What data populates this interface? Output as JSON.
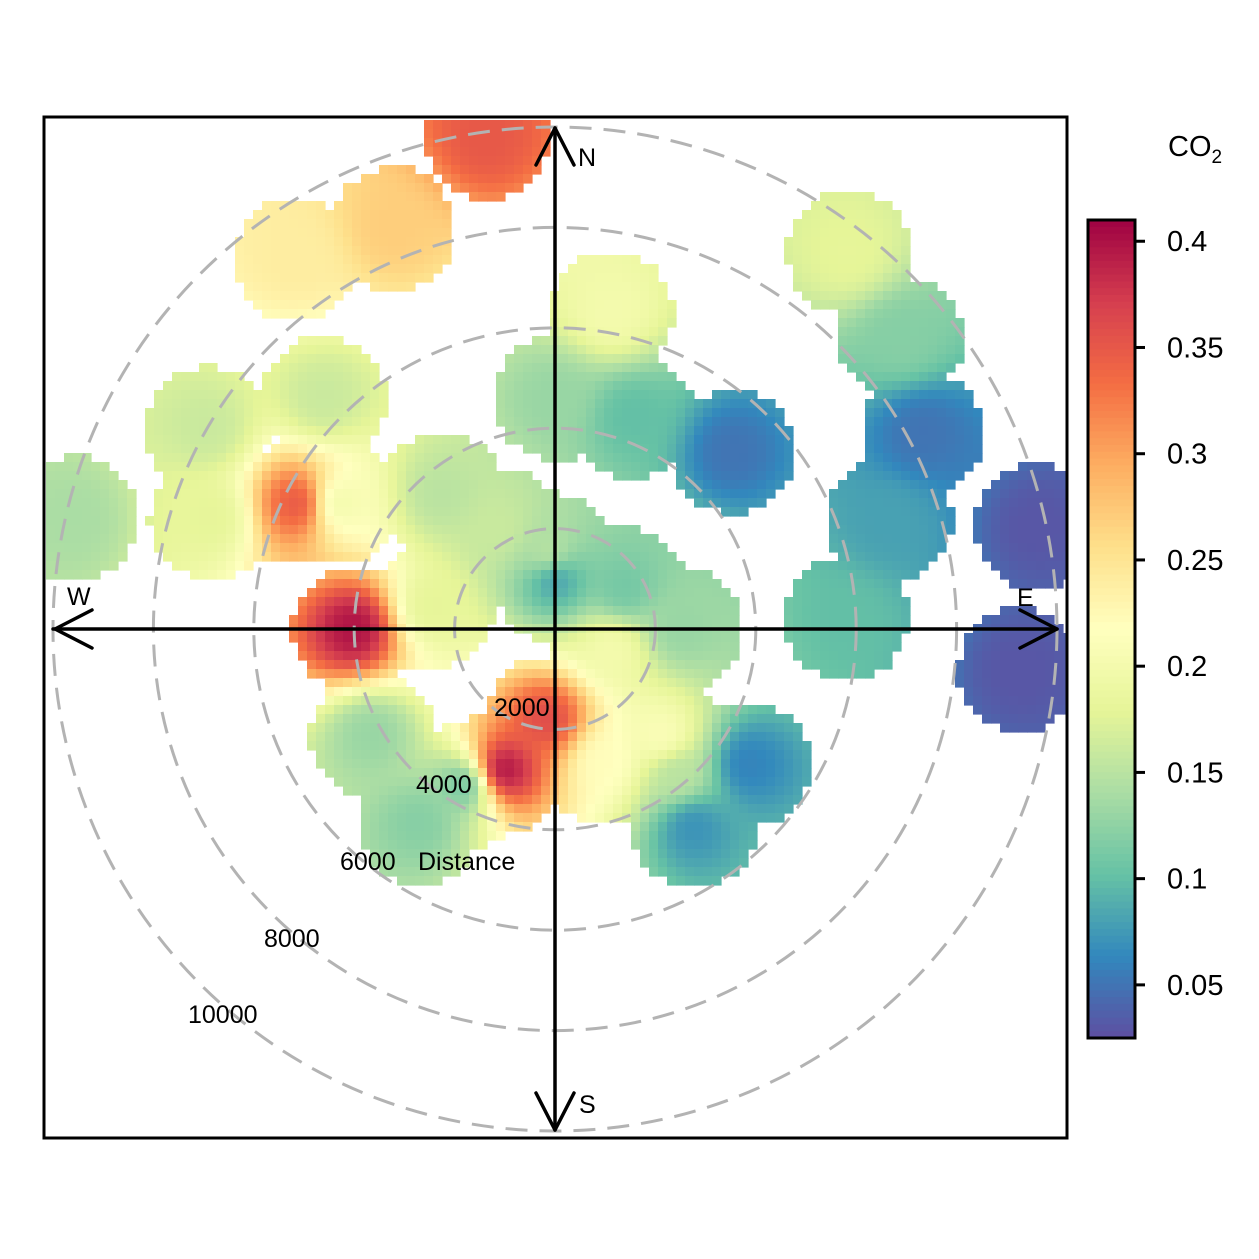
{
  "chart_data": {
    "type": "heatmap",
    "subtype": "polar-plot",
    "title": "",
    "radial_label": "Distance",
    "radial_ticks": [
      2000,
      4000,
      6000,
      8000,
      10000
    ],
    "radial_max": 10000,
    "directions": [
      "N",
      "E",
      "S",
      "W"
    ],
    "colorbar": {
      "title_main": "CO",
      "title_sub": "2",
      "ticks": [
        "0.05",
        "0.1",
        "0.15",
        "0.2",
        "0.25",
        "0.3",
        "0.35",
        "0.4"
      ],
      "tick_values": [
        0.05,
        0.1,
        0.15,
        0.2,
        0.25,
        0.3,
        0.35,
        0.4
      ],
      "range": [
        0.025,
        0.41
      ],
      "palette": [
        "#5e4fa2",
        "#3288bd",
        "#66c2a5",
        "#abdda4",
        "#e6f598",
        "#ffffbf",
        "#fee08b",
        "#fdae61",
        "#f46d43",
        "#d53e4f",
        "#9e0142"
      ]
    },
    "grid": true,
    "blobs": [
      {
        "theta": 0,
        "r": 1000,
        "value": 0.08
      },
      {
        "theta": 200,
        "r": 3000,
        "value": 0.4
      },
      {
        "theta": 185,
        "r": 1800,
        "value": 0.36
      },
      {
        "theta": 160,
        "r": 2800,
        "value": 0.22
      },
      {
        "theta": 270,
        "r": 4000,
        "value": 0.4
      },
      {
        "theta": 296,
        "r": 5700,
        "value": 0.35
      },
      {
        "theta": 352,
        "r": 9900,
        "value": 0.35
      },
      {
        "theta": 338,
        "r": 8600,
        "value": 0.27
      },
      {
        "theta": 325,
        "r": 9000,
        "value": 0.24
      },
      {
        "theta": 10,
        "r": 6400,
        "value": 0.2
      },
      {
        "theta": 0,
        "r": 4600,
        "value": 0.13
      },
      {
        "theta": 20,
        "r": 4500,
        "value": 0.1
      },
      {
        "theta": 45,
        "r": 5000,
        "value": 0.05
      },
      {
        "theta": 62,
        "r": 8300,
        "value": 0.05
      },
      {
        "theta": 78,
        "r": 9800,
        "value": 0.03
      },
      {
        "theta": 50,
        "r": 9000,
        "value": 0.12
      },
      {
        "theta": 38,
        "r": 9500,
        "value": 0.18
      },
      {
        "theta": 72,
        "r": 7000,
        "value": 0.08
      },
      {
        "theta": 95,
        "r": 9300,
        "value": 0.03
      },
      {
        "theta": 88,
        "r": 5800,
        "value": 0.1
      },
      {
        "theta": 90,
        "r": 2500,
        "value": 0.13
      },
      {
        "theta": 135,
        "r": 3000,
        "value": 0.21
      },
      {
        "theta": 140,
        "r": 3800,
        "value": 0.15
      },
      {
        "theta": 145,
        "r": 4800,
        "value": 0.07
      },
      {
        "theta": 125,
        "r": 4700,
        "value": 0.06
      },
      {
        "theta": 320,
        "r": 3500,
        "value": 0.15
      },
      {
        "theta": 315,
        "r": 6500,
        "value": 0.16
      },
      {
        "theta": 300,
        "r": 8000,
        "value": 0.16
      },
      {
        "theta": 288,
        "r": 7200,
        "value": 0.18
      },
      {
        "theta": 283,
        "r": 9800,
        "value": 0.14
      },
      {
        "theta": 300,
        "r": 5000,
        "value": 0.2
      },
      {
        "theta": 280,
        "r": 2500,
        "value": 0.18
      },
      {
        "theta": 330,
        "r": 2300,
        "value": 0.16
      },
      {
        "theta": 210,
        "r": 3600,
        "value": 0.11
      },
      {
        "theta": 215,
        "r": 4700,
        "value": 0.12
      },
      {
        "theta": 240,
        "r": 4200,
        "value": 0.13
      },
      {
        "theta": 355,
        "r": 1500,
        "value": 0.15
      },
      {
        "theta": 60,
        "r": 1600,
        "value": 0.11
      },
      {
        "theta": 110,
        "r": 1200,
        "value": 0.2
      }
    ]
  }
}
